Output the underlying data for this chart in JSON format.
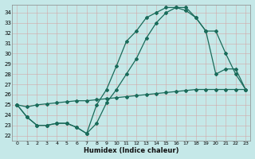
{
  "xlabel": "Humidex (Indice chaleur)",
  "bg_color": "#c5e8e8",
  "grid_color": "#b0d0d0",
  "line_color": "#1a6b5a",
  "xlim": [
    -0.5,
    23.5
  ],
  "ylim": [
    21.5,
    34.8
  ],
  "yticks": [
    22,
    23,
    24,
    25,
    26,
    27,
    28,
    29,
    30,
    31,
    32,
    33,
    34
  ],
  "xticks": [
    0,
    1,
    2,
    3,
    4,
    5,
    6,
    7,
    8,
    9,
    10,
    11,
    12,
    13,
    14,
    15,
    16,
    17,
    18,
    19,
    20,
    21,
    22,
    23
  ],
  "line1_x": [
    0,
    1,
    2,
    3,
    4,
    5,
    6,
    7,
    8,
    9,
    10,
    11,
    12,
    13,
    14,
    15,
    16,
    17,
    18,
    19,
    20,
    21,
    22,
    23
  ],
  "line1_y": [
    25.0,
    24.8,
    25.0,
    25.1,
    25.2,
    25.3,
    25.4,
    25.4,
    25.5,
    25.6,
    25.7,
    25.8,
    25.9,
    26.0,
    26.1,
    26.2,
    26.3,
    26.4,
    26.5,
    26.5,
    26.5,
    26.5,
    26.5,
    26.5
  ],
  "line2_x": [
    0,
    1,
    2,
    3,
    4,
    5,
    6,
    7,
    8,
    9,
    10,
    11,
    12,
    13,
    14,
    15,
    16,
    17,
    18,
    19,
    20,
    21,
    22,
    23
  ],
  "line2_y": [
    25.0,
    23.8,
    23.0,
    23.0,
    23.2,
    23.2,
    22.8,
    22.2,
    25.0,
    26.5,
    28.8,
    31.2,
    32.2,
    33.5,
    34.0,
    34.5,
    34.5,
    34.2,
    33.5,
    32.2,
    28.0,
    28.5,
    28.5,
    26.5
  ],
  "line3_x": [
    0,
    1,
    2,
    3,
    4,
    5,
    6,
    7,
    8,
    9,
    10,
    11,
    12,
    13,
    14,
    15,
    16,
    17,
    18,
    19,
    20,
    21,
    22,
    23
  ],
  "line3_y": [
    25.0,
    23.8,
    23.0,
    23.0,
    23.2,
    23.2,
    22.8,
    22.2,
    23.2,
    25.2,
    26.5,
    28.0,
    29.5,
    31.5,
    33.0,
    34.0,
    34.5,
    34.5,
    33.5,
    32.2,
    32.2,
    30.0,
    28.0,
    26.5
  ]
}
